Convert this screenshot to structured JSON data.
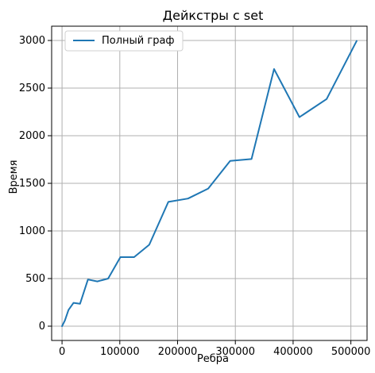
{
  "chart_data": {
    "type": "line",
    "title": "Дейкстры с set",
    "xlabel": "Ребра",
    "ylabel": "Время",
    "xlim": [
      -18000,
      528000
    ],
    "ylim": [
      -150,
      3150
    ],
    "x_ticks": [
      0,
      100000,
      200000,
      300000,
      400000,
      500000
    ],
    "y_ticks": [
      0,
      500,
      1000,
      1500,
      2000,
      2500,
      3000
    ],
    "x_tick_labels": [
      "0",
      "100000",
      "200000",
      "300000",
      "400000",
      "500000"
    ],
    "y_tick_labels": [
      "0",
      "500",
      "1000",
      "1500",
      "2000",
      "2500",
      "3000"
    ],
    "grid": true,
    "legend_position": "top-left",
    "line_color": "#1f77b4",
    "series": [
      {
        "name": "Полный граф",
        "x": [
          0,
          4950,
          11175,
          19900,
          31125,
          44850,
          61075,
          79800,
          101025,
          124750,
          150975,
          184000,
          218000,
          253000,
          291000,
          328000,
          367000,
          411000,
          458000,
          510000
        ],
        "y": [
          0,
          60,
          170,
          245,
          235,
          490,
          470,
          500,
          725,
          725,
          855,
          1305,
          1340,
          1445,
          1735,
          1755,
          2700,
          2195,
          2385,
          2995
        ]
      }
    ]
  }
}
